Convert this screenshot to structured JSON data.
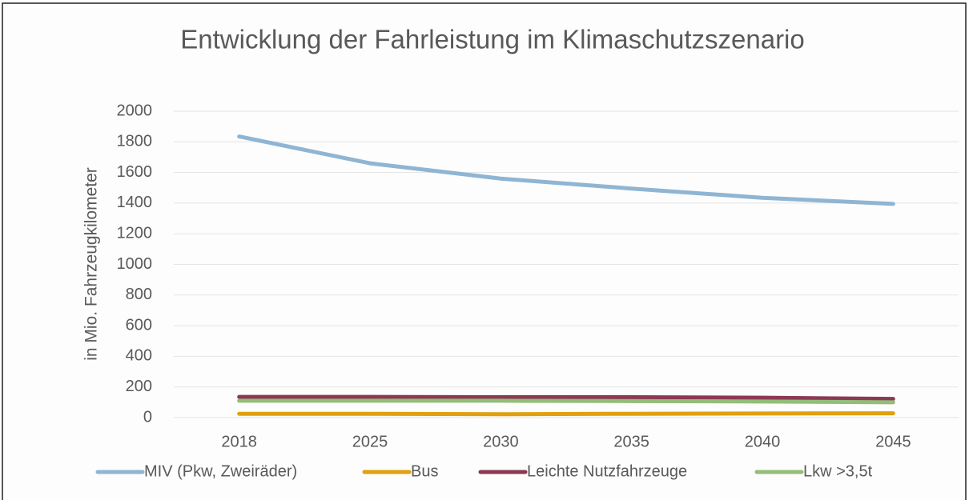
{
  "chart_data": {
    "type": "line",
    "title": "Entwicklung der Fahrleistung im Klimaschutzszenario",
    "y_axis_label": "in Mio. Fahrzeugkilometer",
    "categories": [
      "2018",
      "2025",
      "2030",
      "2035",
      "2040",
      "2045"
    ],
    "series": [
      {
        "name": "MIV (Pkw, Zweiräder)",
        "color": "#8fb5d4",
        "values": [
          1835,
          1660,
          1560,
          1495,
          1435,
          1395
        ]
      },
      {
        "name": "Bus",
        "color": "#e0a010",
        "values": [
          25,
          25,
          22,
          25,
          27,
          28
        ]
      },
      {
        "name": "Leichte Nutzfahrzeuge",
        "color": "#8b3a52",
        "values": [
          135,
          135,
          133,
          133,
          130,
          122
        ]
      },
      {
        "name": "Lkw >3,5t",
        "color": "#93bd78",
        "values": [
          110,
          110,
          110,
          108,
          105,
          100
        ]
      }
    ],
    "ylim": [
      0,
      2000
    ],
    "yticks": [
      0,
      200,
      400,
      600,
      800,
      1000,
      1200,
      1400,
      1600,
      1800,
      2000
    ],
    "grid": true,
    "legend": "bottom"
  }
}
